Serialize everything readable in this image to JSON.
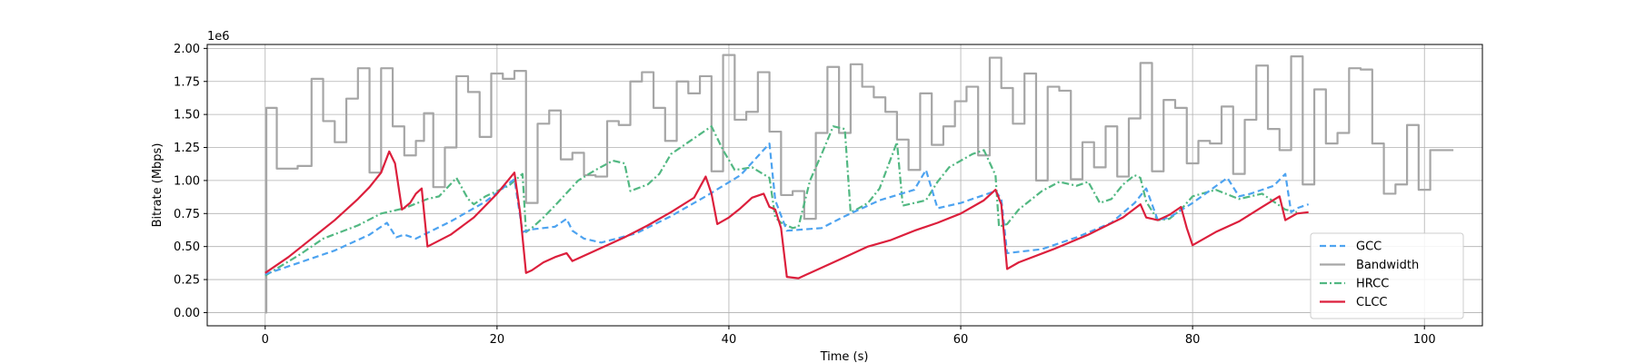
{
  "chart_data": {
    "type": "line",
    "title": "",
    "xlabel": "Time (s)",
    "ylabel": "Bitrate (Mbps)",
    "y_offset_label": "1e6",
    "xlim": [
      -5,
      105
    ],
    "ylim": [
      -100000,
      2030000
    ],
    "x_ticks": [
      0,
      20,
      40,
      60,
      80,
      100
    ],
    "x_tick_labels": [
      "0",
      "20",
      "40",
      "60",
      "80",
      "100"
    ],
    "y_ticks": [
      0,
      250000,
      500000,
      750000,
      1000000,
      1250000,
      1500000,
      1750000,
      2000000
    ],
    "y_tick_labels": [
      "0.00",
      "0.25",
      "0.50",
      "0.75",
      "1.00",
      "1.25",
      "1.50",
      "1.75",
      "2.00"
    ],
    "grid": true,
    "legend_position": "lower-right",
    "series": [
      {
        "name": "GCC",
        "color": "#4da3f0",
        "style": "dashed",
        "x": [
          0,
          3,
          6,
          9,
          10.5,
          11.3,
          12,
          13,
          16,
          19,
          21.5,
          22.2,
          23,
          25,
          26,
          26.5,
          27.5,
          29,
          32,
          35,
          38,
          41,
          43.5,
          44,
          45,
          48,
          50,
          53,
          56,
          57,
          58,
          60,
          63,
          63.5,
          64,
          67,
          70,
          73,
          75,
          76,
          77,
          78,
          80,
          83,
          84,
          85,
          87,
          88,
          88.5,
          89,
          90
        ],
        "y": [
          290000,
          380000,
          470000,
          590000,
          680000,
          570000,
          590000,
          560000,
          690000,
          840000,
          1010000,
          610000,
          630000,
          650000,
          710000,
          620000,
          560000,
          530000,
          600000,
          730000,
          880000,
          1040000,
          1280000,
          850000,
          620000,
          640000,
          730000,
          850000,
          930000,
          1080000,
          790000,
          830000,
          920000,
          860000,
          450000,
          480000,
          570000,
          680000,
          830000,
          940000,
          700000,
          720000,
          830000,
          1020000,
          880000,
          900000,
          960000,
          1050000,
          760000,
          790000,
          820000
        ]
      },
      {
        "name": "Bandwidth",
        "color": "#a6a6a6",
        "style": "step",
        "x": [
          0,
          0.1,
          1,
          2.8,
          4,
          5,
          6,
          7,
          8,
          9,
          10,
          11,
          12,
          13,
          13.7,
          14.5,
          15.5,
          16.5,
          17.5,
          18.5,
          19.5,
          20.5,
          21.5,
          22.5,
          23.5,
          24.5,
          25.5,
          26.5,
          27.5,
          28.5,
          29.5,
          30.5,
          31.5,
          32.5,
          33.5,
          34.5,
          35.5,
          36.5,
          37.5,
          38.5,
          39.5,
          40.5,
          41.5,
          42.5,
          43.5,
          44.5,
          45.5,
          46.5,
          47.5,
          48.5,
          49.5,
          50.5,
          51.5,
          52.5,
          53.5,
          54.5,
          55.5,
          56.5,
          57.5,
          58.5,
          59.5,
          60.5,
          61.5,
          62.5,
          63.5,
          64.5,
          65.5,
          66.5,
          67.5,
          68.5,
          69.5,
          70.5,
          71.5,
          72.5,
          73.5,
          74.5,
          75.5,
          76.5,
          77.5,
          78.5,
          79.5,
          80.5,
          81.5,
          82.5,
          83.5,
          84.5,
          85.5,
          86.5,
          87.5,
          88.5,
          89.5,
          90.5,
          91.5,
          92.5,
          93.5,
          94.5,
          95.5,
          96.5,
          97.5,
          98.5,
          99.5,
          100.5,
          101.5
        ],
        "y": [
          0,
          1550000,
          1090000,
          1110000,
          1770000,
          1450000,
          1290000,
          1620000,
          1850000,
          1060000,
          1850000,
          1410000,
          1190000,
          1300000,
          1510000,
          950000,
          1250000,
          1790000,
          1670000,
          1330000,
          1810000,
          1770000,
          1830000,
          830000,
          1430000,
          1530000,
          1160000,
          1210000,
          1040000,
          1030000,
          1450000,
          1420000,
          1750000,
          1820000,
          1550000,
          1300000,
          1750000,
          1660000,
          1790000,
          1070000,
          1950000,
          1460000,
          1520000,
          1820000,
          1370000,
          890000,
          920000,
          710000,
          1360000,
          1860000,
          1360000,
          1880000,
          1710000,
          1630000,
          1520000,
          1310000,
          1080000,
          1660000,
          1270000,
          1410000,
          1600000,
          1710000,
          1190000,
          1930000,
          1700000,
          1430000,
          1810000,
          1000000,
          1710000,
          1680000,
          1010000,
          1290000,
          1100000,
          1410000,
          1030000,
          1470000,
          1890000,
          1070000,
          1610000,
          1550000,
          1130000,
          1300000,
          1280000,
          1560000,
          1050000,
          1460000,
          1870000,
          1390000,
          1230000,
          1940000,
          970000,
          1690000,
          1280000,
          1360000,
          1850000,
          1840000,
          1280000,
          900000,
          970000,
          1420000,
          930000,
          1230000,
          1230000
        ]
      },
      {
        "name": "HRCC",
        "color": "#52b882",
        "style": "dashdot",
        "x": [
          0,
          3,
          5,
          8,
          10,
          12,
          14,
          15,
          16.5,
          17.5,
          18,
          19,
          21,
          22.2,
          22.5,
          23,
          24,
          25,
          27,
          28.5,
          30,
          31,
          31.5,
          33,
          34,
          35,
          36.5,
          37.5,
          38.5,
          39.5,
          40.5,
          42,
          43.5,
          44,
          44.5,
          45.5,
          46,
          47,
          48,
          49,
          50,
          50.5,
          51,
          52,
          53,
          54.5,
          55,
          57,
          58,
          59,
          60,
          61,
          62,
          63,
          63.3,
          64,
          65,
          67,
          68.5,
          70,
          71,
          72,
          73,
          74,
          75,
          75.5,
          76,
          77,
          78,
          79,
          80,
          82,
          84,
          86,
          88,
          89
        ],
        "y": [
          280000,
          440000,
          560000,
          660000,
          750000,
          790000,
          860000,
          880000,
          1020000,
          860000,
          820000,
          880000,
          960000,
          1050000,
          610000,
          640000,
          720000,
          810000,
          1000000,
          1080000,
          1150000,
          1130000,
          920000,
          970000,
          1050000,
          1200000,
          1290000,
          1350000,
          1410000,
          1230000,
          1080000,
          1100000,
          1020000,
          720000,
          680000,
          640000,
          650000,
          1000000,
          1200000,
          1410000,
          1390000,
          760000,
          780000,
          830000,
          940000,
          1290000,
          810000,
          850000,
          990000,
          1100000,
          1150000,
          1200000,
          1230000,
          1040000,
          650000,
          670000,
          780000,
          920000,
          990000,
          960000,
          990000,
          830000,
          860000,
          970000,
          1040000,
          1020000,
          840000,
          700000,
          710000,
          780000,
          880000,
          930000,
          860000,
          900000,
          780000,
          760000
        ]
      },
      {
        "name": "CLCC",
        "color": "#dc1f3c",
        "style": "solid",
        "x": [
          0,
          2,
          4,
          6,
          8,
          9,
          10,
          10.7,
          11.2,
          11.8,
          12.5,
          13,
          13.5,
          14,
          16,
          18,
          20,
          21.5,
          22,
          22.5,
          23,
          24,
          25,
          26,
          26.5,
          27,
          29,
          31,
          33,
          35,
          37,
          38,
          38.5,
          39,
          40,
          41,
          42,
          43,
          43.5,
          44,
          44.5,
          45,
          46,
          48,
          50,
          51,
          52,
          54,
          56,
          58,
          60,
          62,
          63,
          63.5,
          64,
          65,
          68,
          71,
          74,
          75.5,
          76,
          77,
          78,
          79,
          79.5,
          80,
          82,
          84,
          86,
          87.5,
          88,
          89,
          90
        ],
        "y": [
          300000,
          420000,
          560000,
          700000,
          860000,
          950000,
          1060000,
          1220000,
          1130000,
          780000,
          830000,
          900000,
          940000,
          500000,
          590000,
          720000,
          900000,
          1060000,
          750000,
          300000,
          320000,
          380000,
          420000,
          450000,
          390000,
          410000,
          490000,
          570000,
          660000,
          760000,
          870000,
          1030000,
          900000,
          670000,
          720000,
          790000,
          870000,
          900000,
          800000,
          780000,
          640000,
          270000,
          260000,
          340000,
          420000,
          460000,
          500000,
          550000,
          620000,
          680000,
          750000,
          850000,
          930000,
          820000,
          330000,
          380000,
          480000,
          590000,
          720000,
          820000,
          720000,
          700000,
          740000,
          800000,
          640000,
          510000,
          610000,
          690000,
          800000,
          880000,
          700000,
          750000,
          760000
        ]
      }
    ]
  }
}
